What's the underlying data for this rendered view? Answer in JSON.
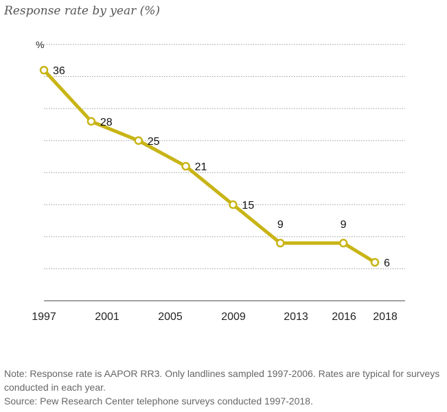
{
  "chart_data": {
    "type": "line",
    "title": "Response rate by year (%)",
    "ylabel": "%",
    "xlabel": "",
    "ylim": [
      0,
      42
    ],
    "grid": true,
    "x_tick_labels": [
      "1997",
      "2001",
      "2005",
      "2009",
      "2013",
      "2016",
      "2018"
    ],
    "series": [
      {
        "color": "#c8b416",
        "points": [
          {
            "label": "36",
            "x": 1997,
            "y": 36
          },
          {
            "label": "28",
            "x": 2000,
            "y": 28
          },
          {
            "label": "25",
            "x": 2003,
            "y": 25
          },
          {
            "label": "21",
            "x": 2006,
            "y": 21
          },
          {
            "label": "15",
            "x": 2009,
            "y": 15
          },
          {
            "label": "9",
            "x": 2012,
            "y": 9
          },
          {
            "label": "9",
            "x": 2016,
            "y": 9
          },
          {
            "label": "6",
            "x": 2018,
            "y": 6
          }
        ]
      }
    ]
  },
  "notes": {
    "note": "Note: Response rate is AAPOR RR3. Only landlines sampled 1997-2006. Rates are typical for surveys conducted in each year.",
    "source": "Source: Pew Research Center telephone surveys conducted 1997-2018."
  },
  "colors": {
    "line": "#c8b416",
    "marker_fill": "#ffffff",
    "grid": "#9a9a9a",
    "axis": "#444444"
  }
}
